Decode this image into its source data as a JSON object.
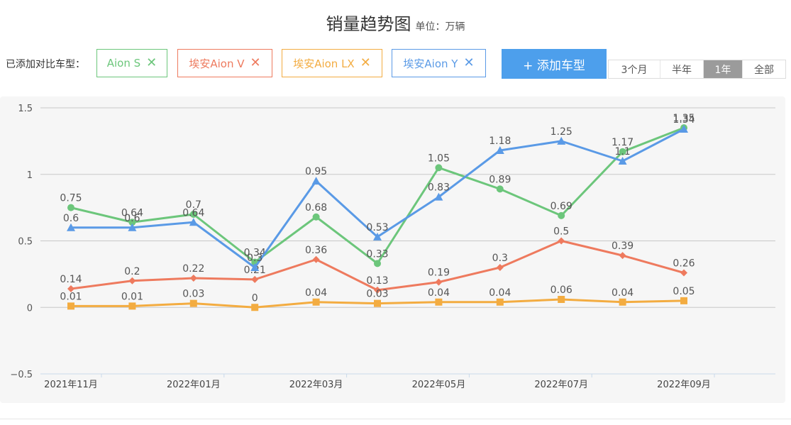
{
  "header": {
    "title": "销量趋势图",
    "unit": "单位：万辆"
  },
  "compare": {
    "label": "已添加对比车型：",
    "models": [
      {
        "name": "Aion S",
        "color": "#6cc67b"
      },
      {
        "name": "埃安Aion V",
        "color": "#ee7a5e"
      },
      {
        "name": "埃安Aion LX",
        "color": "#f3ac41"
      },
      {
        "name": "埃安Aion Y",
        "color": "#5a9ae6"
      }
    ],
    "remove_icon": "close-icon",
    "add_button": "+ 添加车型"
  },
  "ranges": {
    "options": [
      "3个月",
      "半年",
      "1年",
      "全部"
    ],
    "selected": "1年"
  },
  "chart_data": {
    "type": "line",
    "x": [
      "2021年11月",
      "2021年12月",
      "2022年01月",
      "2022年02月",
      "2022年03月",
      "2022年04月",
      "2022年05月",
      "2022年06月",
      "2022年07月",
      "2022年08月",
      "2022年09月"
    ],
    "x_tick_labels": [
      "2021年11月",
      "2022年01月",
      "2022年03月",
      "2022年05月",
      "2022年07月",
      "2022年09月"
    ],
    "y_ticks": [
      "1.5",
      "1",
      "0.5",
      "0",
      "−0.5"
    ],
    "ylim": [
      -0.5,
      1.5
    ],
    "grid": true,
    "series": [
      {
        "name": "Aion S",
        "color": "#6cc67b",
        "marker": "circle",
        "values": [
          0.75,
          0.64,
          0.7,
          0.34,
          0.68,
          0.33,
          1.05,
          0.89,
          0.69,
          1.17,
          1.35
        ],
        "labels": [
          "0.75",
          "0.64",
          "0.7",
          "0.34",
          "0.68",
          "0.33",
          "1.05",
          "0.89",
          "0.69",
          "1.17",
          "1.35"
        ]
      },
      {
        "name": "埃安Aion V",
        "color": "#ee7a5e",
        "marker": "diamond",
        "values": [
          0.14,
          0.2,
          0.22,
          0.21,
          0.36,
          0.13,
          0.19,
          0.3,
          0.5,
          0.39,
          0.26
        ],
        "labels": [
          "0.14",
          "0.2",
          "0.22",
          "0.21",
          "0.36",
          "0.13",
          "0.19",
          "0.3",
          "0.5",
          "0.39",
          "0.26"
        ]
      },
      {
        "name": "埃安Aion LX",
        "color": "#f3ac41",
        "marker": "square",
        "values": [
          0.01,
          0.01,
          0.03,
          0,
          0.04,
          0.03,
          0.04,
          0.04,
          0.06,
          0.04,
          0.05
        ],
        "labels": [
          "0.01",
          "0.01",
          "0.03",
          "0",
          "0.04",
          "0.03",
          "0.04",
          "0.04",
          "0.06",
          "0.04",
          "0.05"
        ]
      },
      {
        "name": "埃安Aion Y",
        "color": "#5a9ae6",
        "marker": "triangle",
        "values": [
          0.6,
          0.6,
          0.64,
          0.3,
          0.95,
          0.53,
          0.83,
          1.18,
          1.25,
          1.1,
          1.34
        ],
        "labels": [
          "0.6",
          "0.6",
          "0.64",
          "0.3",
          "0.95",
          "0.53",
          "0.83",
          "1.18",
          "1.25",
          "1.1",
          "1.34"
        ]
      }
    ]
  }
}
